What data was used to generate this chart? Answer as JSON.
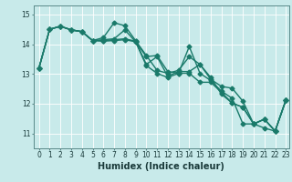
{
  "xlabel": "Humidex (Indice chaleur)",
  "background_color": "#c8eaea",
  "grid_color": "#ffffff",
  "line_color": "#1a7a6a",
  "xlim": [
    -0.5,
    23.3
  ],
  "ylim": [
    10.5,
    15.3
  ],
  "yticks": [
    11,
    12,
    13,
    14,
    15
  ],
  "ytick_labels": [
    "11",
    "12",
    "13",
    "14",
    "15"
  ],
  "xticks": [
    0,
    1,
    2,
    3,
    4,
    5,
    6,
    7,
    8,
    9,
    10,
    11,
    12,
    13,
    14,
    15,
    16,
    17,
    18,
    19,
    20,
    21,
    22,
    23
  ],
  "series": [
    [
      13.2,
      14.5,
      14.6,
      14.48,
      14.42,
      14.12,
      14.22,
      14.72,
      14.62,
      14.12,
      13.62,
      13.12,
      13.02,
      13.12,
      13.58,
      13.32,
      12.82,
      12.58,
      12.52,
      12.08,
      11.32,
      11.18,
      11.08,
      12.12
    ],
    [
      13.2,
      14.5,
      14.6,
      14.48,
      14.42,
      14.12,
      14.15,
      14.18,
      14.48,
      14.08,
      13.58,
      13.62,
      13.08,
      13.02,
      13.92,
      13.02,
      12.78,
      12.42,
      12.18,
      11.32,
      11.32,
      11.48,
      11.08,
      12.12
    ],
    [
      13.2,
      14.5,
      14.6,
      14.48,
      14.42,
      14.12,
      14.12,
      14.15,
      14.18,
      14.1,
      13.32,
      13.58,
      12.92,
      13.08,
      13.08,
      13.32,
      12.88,
      12.32,
      12.02,
      11.88,
      11.32,
      11.48,
      11.08,
      12.12
    ],
    [
      13.2,
      14.5,
      14.6,
      14.48,
      14.42,
      14.12,
      14.1,
      14.12,
      14.15,
      14.08,
      13.28,
      13.02,
      12.88,
      13.02,
      13.02,
      12.72,
      12.72,
      12.38,
      12.02,
      11.88,
      11.32,
      11.48,
      11.08,
      12.12
    ]
  ],
  "marker": "D",
  "markersize": 2.5,
  "linewidth": 1.0,
  "label_fontsize": 7,
  "tick_fontsize": 5.5
}
